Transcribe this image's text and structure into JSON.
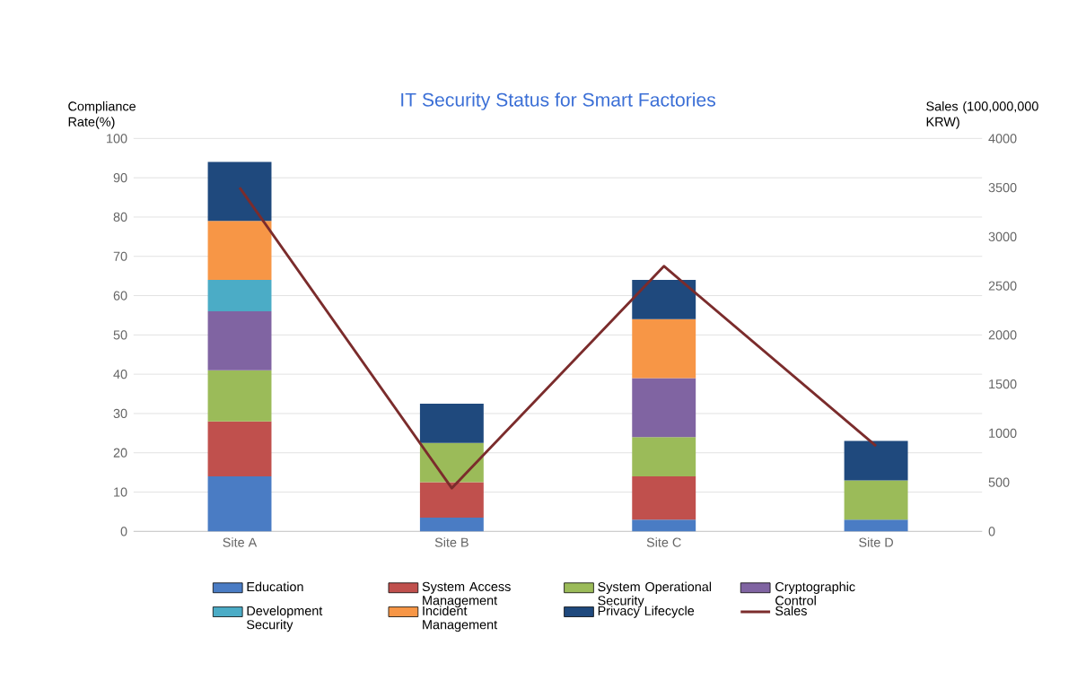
{
  "chart_data": {
    "type": "bar",
    "stacked": true,
    "title": "IT Security Status for Smart Factories",
    "ylabel": "Compliance Rate(%)",
    "y2label": "Sales (100,000,000 KRW)",
    "categories": [
      "Site A",
      "Site B",
      "Site C",
      "Site D"
    ],
    "series": [
      {
        "name": "Education",
        "color": "#4a7cc4",
        "values": [
          14,
          3.5,
          3,
          3
        ]
      },
      {
        "name": "System Access Management",
        "color": "#c0504d",
        "values": [
          14,
          9,
          11,
          null
        ]
      },
      {
        "name": "System Operational Security",
        "color": "#9bbb59",
        "values": [
          13,
          10,
          10,
          10
        ]
      },
      {
        "name": "Cryptographic Control",
        "color": "#8064a2",
        "values": [
          15,
          null,
          15,
          null
        ]
      },
      {
        "name": "Development Security",
        "color": "#4bacc6",
        "values": [
          8,
          null,
          null,
          null
        ]
      },
      {
        "name": "Incident Management",
        "color": "#f79646",
        "values": [
          15,
          null,
          15,
          null
        ]
      },
      {
        "name": "Privacy Lifecycle",
        "color": "#1f497d",
        "values": [
          15,
          10,
          10,
          10
        ]
      },
      {
        "name": "Sales",
        "type": "line",
        "axis": "y2",
        "color": "#7b2c2c",
        "values": [
          3500,
          440,
          2700,
          870
        ]
      }
    ],
    "ylim": [
      0,
      100
    ],
    "yticks": [
      0,
      10,
      20,
      30,
      40,
      50,
      60,
      70,
      80,
      90,
      100
    ],
    "y2lim": [
      0,
      4000
    ],
    "y2ticks": [
      0,
      500,
      1000,
      1500,
      2000,
      2500,
      3000,
      3500,
      4000
    ],
    "grid": "y",
    "legend": "bottom"
  }
}
